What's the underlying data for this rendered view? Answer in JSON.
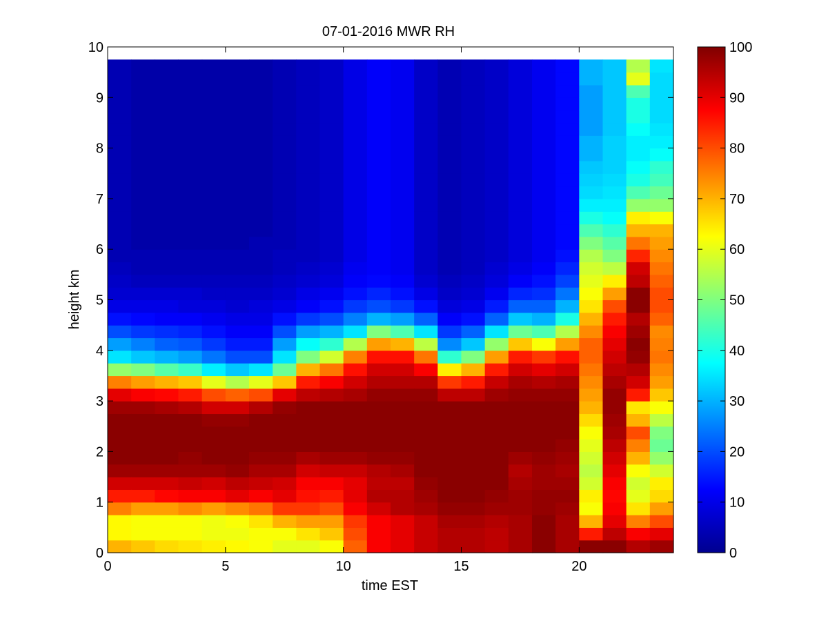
{
  "chart_data": {
    "type": "heatmap",
    "title": "07-01-2016 MWR RH",
    "xlabel": "time EST",
    "ylabel": "height km",
    "xlim": [
      0,
      24
    ],
    "ylim": [
      0,
      10
    ],
    "xticks": [
      "0",
      "5",
      "10",
      "15",
      "20"
    ],
    "yticks": [
      "0",
      "1",
      "2",
      "3",
      "4",
      "5",
      "6",
      "7",
      "8",
      "9",
      "10"
    ],
    "colorbar": {
      "colormap": "jet",
      "range": [
        0,
        100
      ],
      "ticks": [
        "0",
        "10",
        "20",
        "30",
        "40",
        "50",
        "60",
        "70",
        "80",
        "90",
        "100"
      ]
    },
    "x": [
      0,
      1,
      2,
      3,
      4,
      5,
      6,
      7,
      8,
      9,
      10,
      11,
      12,
      13,
      14,
      15,
      16,
      17,
      18,
      19,
      20,
      21,
      22,
      23
    ],
    "heights": [
      0,
      0.25,
      0.5,
      0.75,
      1,
      1.25,
      1.5,
      1.75,
      2,
      2.25,
      2.5,
      2.75,
      3,
      3.25,
      3.5,
      3.75,
      4,
      4.25,
      4.5,
      4.75,
      5,
      5.25,
      5.5,
      5.75,
      6,
      6.25,
      6.5,
      6.75,
      7,
      7.25,
      7.5,
      7.75,
      8,
      8.25,
      8.5,
      8.75,
      9,
      9.25,
      9.5
    ],
    "profiles": [
      {
        "x": 0,
        "values": [
          70,
          63,
          63,
          75,
          85,
          92,
          97,
          99,
          99,
          99,
          99,
          97,
          90,
          75,
          52,
          35,
          28,
          20,
          14,
          10,
          8,
          7,
          6,
          5,
          5,
          5,
          5,
          5,
          5,
          5,
          5,
          5,
          5,
          5,
          5,
          5,
          5,
          5,
          5
        ]
      },
      {
        "x": 1,
        "values": [
          68,
          62,
          62,
          72,
          85,
          92,
          97,
          99,
          99,
          99,
          99,
          97,
          88,
          72,
          50,
          32,
          25,
          18,
          13,
          10,
          8,
          6,
          5,
          5,
          4,
          4,
          4,
          4,
          4,
          4,
          4,
          4,
          4,
          4,
          4,
          4,
          4,
          4,
          4
        ]
      },
      {
        "x": 2,
        "values": [
          66,
          62,
          62,
          72,
          87,
          92,
          97,
          99,
          99,
          99,
          99,
          96,
          87,
          70,
          46,
          30,
          22,
          17,
          12,
          10,
          8,
          6,
          5,
          5,
          4,
          4,
          4,
          4,
          4,
          4,
          4,
          4,
          4,
          4,
          4,
          4,
          4,
          4,
          4
        ]
      },
      {
        "x": 3,
        "values": [
          65,
          62,
          62,
          74,
          88,
          93,
          97,
          98,
          99,
          99,
          99,
          95,
          85,
          68,
          43,
          28,
          21,
          16,
          12,
          9,
          8,
          6,
          5,
          5,
          4,
          4,
          4,
          4,
          4,
          4,
          4,
          4,
          4,
          4,
          4,
          4,
          4,
          4,
          4
        ]
      },
      {
        "x": 4,
        "values": [
          64,
          61,
          61,
          72,
          88,
          92,
          97,
          99,
          99,
          99,
          98,
          92,
          80,
          60,
          36,
          24,
          18,
          14,
          11,
          9,
          7,
          6,
          5,
          5,
          4,
          4,
          4,
          4,
          4,
          4,
          4,
          4,
          4,
          4,
          4,
          4,
          4,
          4,
          4
        ]
      },
      {
        "x": 5,
        "values": [
          63,
          61,
          62,
          74,
          90,
          94,
          98,
          99,
          99,
          99,
          98,
          92,
          78,
          55,
          32,
          20,
          15,
          12,
          10,
          8,
          7,
          6,
          5,
          5,
          4,
          4,
          4,
          4,
          4,
          4,
          4,
          4,
          4,
          4,
          4,
          4,
          4,
          4,
          4
        ]
      },
      {
        "x": 6,
        "values": [
          62,
          62,
          65,
          76,
          88,
          93,
          96,
          98,
          99,
          99,
          99,
          95,
          80,
          60,
          35,
          20,
          15,
          12,
          10,
          9,
          7,
          6,
          5,
          5,
          5,
          4,
          4,
          4,
          4,
          4,
          4,
          4,
          4,
          4,
          4,
          4,
          4,
          4,
          4
        ]
      },
      {
        "x": 7,
        "values": [
          60,
          62,
          70,
          82,
          90,
          92,
          96,
          98,
          99,
          99,
          99,
          98,
          90,
          68,
          48,
          35,
          28,
          20,
          14,
          10,
          8,
          7,
          6,
          6,
          5,
          5,
          5,
          5,
          5,
          5,
          5,
          5,
          5,
          5,
          5,
          5,
          5,
          5,
          5
        ]
      },
      {
        "x": 8,
        "values": [
          60,
          65,
          72,
          82,
          86,
          88,
          92,
          96,
          99,
          99,
          99,
          99,
          94,
          85,
          70,
          50,
          38,
          28,
          18,
          12,
          10,
          8,
          7,
          6,
          6,
          6,
          6,
          6,
          6,
          6,
          6,
          6,
          6,
          6,
          6,
          6,
          6,
          6,
          6
        ]
      },
      {
        "x": 9,
        "values": [
          62,
          68,
          72,
          80,
          85,
          88,
          93,
          97,
          99,
          99,
          99,
          99,
          95,
          88,
          76,
          58,
          42,
          30,
          20,
          14,
          11,
          9,
          8,
          7,
          7,
          7,
          7,
          7,
          7,
          7,
          7,
          7,
          7,
          7,
          7,
          7,
          7,
          7,
          7
        ]
      },
      {
        "x": 10,
        "values": [
          78,
          80,
          82,
          88,
          90,
          90,
          93,
          97,
          99,
          99,
          99,
          99,
          96,
          92,
          86,
          75,
          55,
          35,
          25,
          18,
          14,
          12,
          11,
          10,
          10,
          10,
          10,
          10,
          10,
          10,
          10,
          10,
          10,
          10,
          10,
          10,
          10,
          10,
          10
        ]
      },
      {
        "x": 11,
        "values": [
          88,
          88,
          88,
          92,
          95,
          94,
          95,
          98,
          99,
          99,
          99,
          99,
          98,
          95,
          92,
          86,
          72,
          50,
          30,
          20,
          16,
          13,
          12,
          12,
          12,
          12,
          12,
          12,
          12,
          12,
          12,
          12,
          12,
          12,
          12,
          12,
          12,
          12,
          12
        ]
      },
      {
        "x": 12,
        "values": [
          90,
          90,
          90,
          95,
          95,
          94,
          96,
          98,
          99,
          99,
          99,
          99,
          98,
          95,
          92,
          86,
          70,
          45,
          28,
          18,
          14,
          12,
          11,
          11,
          11,
          11,
          11,
          11,
          11,
          11,
          11,
          11,
          11,
          11,
          11,
          11,
          11,
          11,
          11
        ]
      },
      {
        "x": 13,
        "values": [
          93,
          93,
          93,
          96,
          97,
          98,
          99,
          99,
          99,
          99,
          99,
          99,
          98,
          95,
          88,
          76,
          56,
          35,
          22,
          14,
          10,
          8,
          7,
          7,
          7,
          7,
          7,
          7,
          7,
          7,
          7,
          7,
          7,
          7,
          7,
          7,
          7,
          7,
          7
        ]
      },
      {
        "x": 14,
        "values": [
          95,
          95,
          96,
          98,
          99,
          99,
          99,
          99,
          99,
          99,
          99,
          99,
          94,
          82,
          64,
          42,
          26,
          18,
          12,
          9,
          7,
          6,
          5,
          5,
          5,
          5,
          5,
          5,
          5,
          5,
          5,
          5,
          5,
          5,
          5,
          5,
          5,
          5,
          5
        ]
      },
      {
        "x": 15,
        "values": [
          95,
          95,
          96,
          98,
          99,
          99,
          99,
          99,
          99,
          99,
          99,
          99,
          94,
          85,
          70,
          50,
          32,
          22,
          14,
          10,
          8,
          7,
          6,
          6,
          6,
          6,
          6,
          6,
          6,
          6,
          6,
          6,
          6,
          6,
          6,
          6,
          6,
          6,
          6
        ]
      },
      {
        "x": 16,
        "values": [
          94,
          94,
          95,
          97,
          98,
          99,
          99,
          99,
          99,
          99,
          99,
          99,
          97,
          93,
          85,
          72,
          52,
          35,
          22,
          15,
          11,
          9,
          8,
          7,
          7,
          7,
          7,
          7,
          7,
          7,
          7,
          7,
          7,
          7,
          7,
          7,
          7,
          7,
          7
        ]
      },
      {
        "x": 17,
        "values": [
          96,
          96,
          96,
          97,
          97,
          96,
          95,
          97,
          99,
          99,
          99,
          99,
          98,
          96,
          92,
          85,
          68,
          48,
          32,
          22,
          16,
          12,
          10,
          9,
          9,
          9,
          9,
          9,
          9,
          9,
          9,
          9,
          9,
          9,
          9,
          9,
          9,
          9,
          9
        ]
      },
      {
        "x": 18,
        "values": [
          99,
          99,
          99,
          98,
          98,
          97,
          97,
          98,
          99,
          99,
          99,
          99,
          98,
          95,
          90,
          82,
          62,
          45,
          30,
          22,
          17,
          14,
          12,
          11,
          11,
          11,
          11,
          11,
          11,
          11,
          11,
          11,
          11,
          11,
          11,
          11,
          11,
          11,
          11
        ]
      },
      {
        "x": 19,
        "values": [
          96,
          96,
          96,
          97,
          98,
          97,
          96,
          97,
          98,
          99,
          99,
          99,
          98,
          96,
          92,
          86,
          72,
          55,
          40,
          30,
          24,
          19,
          16,
          14,
          13,
          13,
          13,
          13,
          13,
          13,
          13,
          13,
          13,
          13,
          13,
          13,
          13,
          13,
          13
        ]
      },
      {
        "x": 20,
        "values": [
          99,
          85,
          70,
          62,
          64,
          58,
          56,
          58,
          60,
          62,
          66,
          70,
          72,
          74,
          76,
          78,
          78,
          74,
          70,
          65,
          62,
          60,
          58,
          55,
          50,
          45,
          40,
          36,
          34,
          33,
          32,
          30,
          30,
          28,
          28,
          28,
          28,
          30,
          30
        ]
      },
      {
        "x": 21,
        "values": [
          99,
          94,
          90,
          88,
          87,
          88,
          90,
          92,
          94,
          96,
          97,
          98,
          98,
          96,
          94,
          92,
          90,
          88,
          85,
          80,
          72,
          64,
          56,
          50,
          46,
          42,
          38,
          36,
          35,
          34,
          33,
          33,
          33,
          32,
          32,
          32,
          32,
          32,
          32
        ]
      },
      {
        "x": 22,
        "values": [
          95,
          88,
          75,
          65,
          60,
          58,
          62,
          70,
          75,
          80,
          70,
          65,
          85,
          92,
          95,
          98,
          99,
          97,
          95,
          99,
          99,
          94,
          92,
          84,
          76,
          70,
          64,
          52,
          45,
          40,
          38,
          36,
          36,
          38,
          40,
          40,
          45,
          60,
          55
        ]
      },
      {
        "x": 23,
        "values": [
          97,
          90,
          80,
          72,
          66,
          64,
          58,
          52,
          48,
          50,
          56,
          62,
          68,
          72,
          74,
          76,
          75,
          74,
          78,
          80,
          80,
          78,
          76,
          74,
          72,
          70,
          62,
          52,
          48,
          44,
          42,
          38,
          36,
          35,
          34,
          34,
          34,
          34,
          35
        ]
      }
    ]
  }
}
